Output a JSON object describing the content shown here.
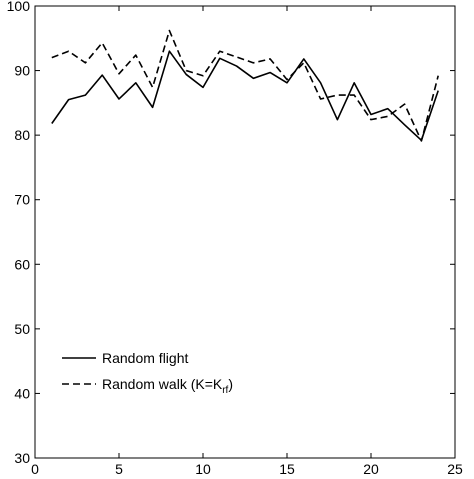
{
  "chart_data": {
    "type": "line",
    "title": "",
    "xlabel": "",
    "ylabel": "",
    "xlim": [
      0,
      25
    ],
    "ylim": [
      30,
      100
    ],
    "xticks": [
      0,
      5,
      10,
      15,
      20,
      25
    ],
    "yticks": [
      30,
      40,
      50,
      60,
      70,
      80,
      90,
      100
    ],
    "grid": false,
    "legend_position": "bottom-left",
    "x": [
      1,
      2,
      3,
      4,
      5,
      6,
      7,
      8,
      9,
      10,
      11,
      12,
      13,
      14,
      15,
      16,
      17,
      18,
      19,
      20,
      21,
      22,
      23,
      24
    ],
    "series": [
      {
        "name": "Random flight",
        "style": "solid",
        "values": [
          81.8,
          85.5,
          86.2,
          89.3,
          85.6,
          88.1,
          84.3,
          93.0,
          89.4,
          87.4,
          91.9,
          90.7,
          88.8,
          89.7,
          88.1,
          91.8,
          88.1,
          82.4,
          88.1,
          83.2,
          84.1,
          81.6,
          79.2,
          86.9
        ]
      },
      {
        "name": "Random walk (K=K",
        "name_subscript": "rf",
        "name_suffix": ")",
        "style": "dashed",
        "values": [
          92.0,
          93.0,
          91.2,
          94.3,
          89.5,
          92.4,
          87.4,
          96.2,
          90.0,
          89.2,
          93.0,
          92.1,
          91.2,
          91.8,
          88.6,
          91.2,
          85.6,
          86.2,
          86.2,
          82.4,
          82.9,
          84.8,
          79.1,
          89.2
        ]
      }
    ],
    "color": "#000000"
  }
}
